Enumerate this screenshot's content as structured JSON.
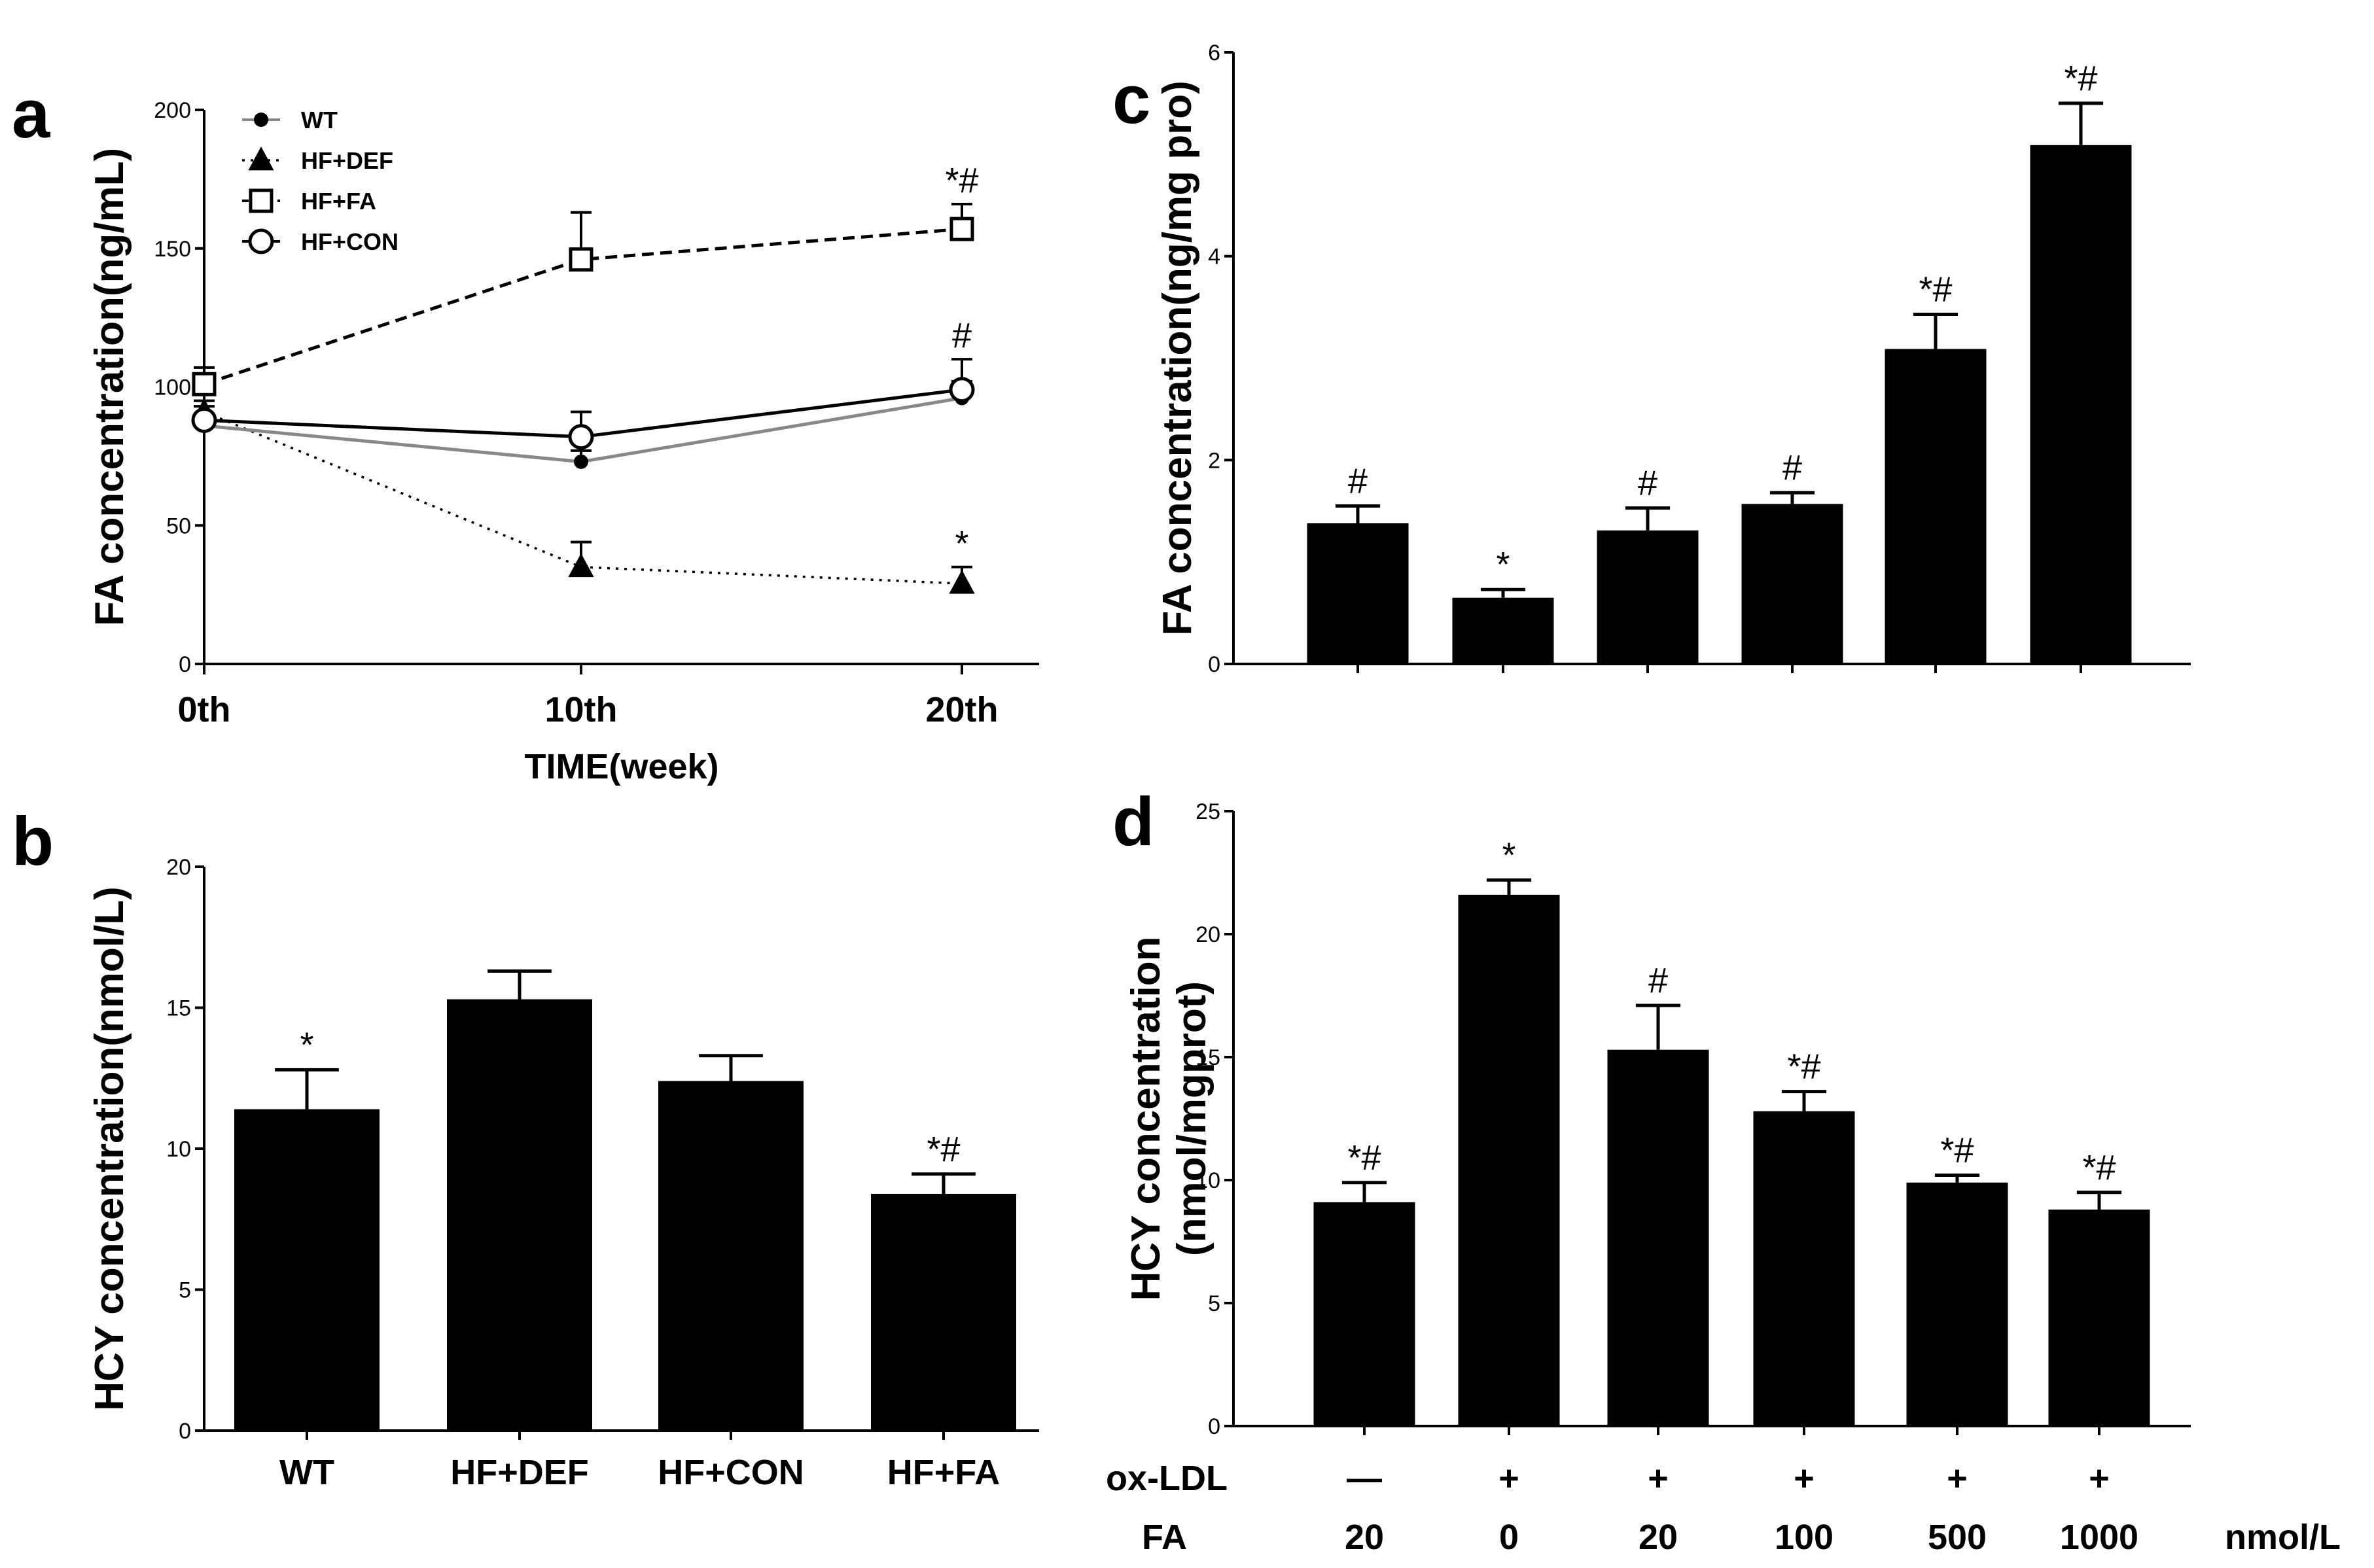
{
  "chart_data": [
    {
      "id": "a",
      "panel_label": "a",
      "type": "line",
      "x": [
        "0th",
        "10th",
        "20th"
      ],
      "xlabel": "TIME(week)",
      "ylabel": "FA concentration(ng/mL)",
      "ylim": [
        0,
        200
      ],
      "yticks": [
        0,
        50,
        100,
        150,
        200
      ],
      "series": [
        {
          "name": "WT",
          "values": [
            86,
            73,
            96
          ],
          "err": [
            4,
            4,
            6
          ],
          "color": "#888888",
          "line": "solid",
          "marker": "filled-circle"
        },
        {
          "name": "HF+DEF",
          "values": [
            91,
            35,
            29
          ],
          "err": [
            4,
            9,
            6
          ],
          "color": "#000000",
          "line": "dotted",
          "marker": "filled-triangle"
        },
        {
          "name": "HF+FA",
          "values": [
            101,
            146,
            157
          ],
          "err": [
            6,
            17,
            9
          ],
          "color": "#000000",
          "line": "dashed",
          "marker": "open-square"
        },
        {
          "name": "HF+CON",
          "values": [
            88,
            82,
            99
          ],
          "err": [
            5,
            9,
            11
          ],
          "color": "#000000",
          "line": "solid",
          "marker": "open-circle"
        }
      ],
      "annotations": [
        {
          "x": "20th",
          "series": "HF+FA",
          "text": "*#"
        },
        {
          "x": "20th",
          "series": "HF+CON",
          "text": "#"
        },
        {
          "x": "20th",
          "series": "HF+DEF",
          "text": "*"
        }
      ]
    },
    {
      "id": "b",
      "panel_label": "b",
      "type": "bar",
      "categories": [
        "WT",
        "HF+DEF",
        "HF+CON",
        "HF+FA"
      ],
      "values": [
        11.4,
        15.3,
        12.4,
        8.4
      ],
      "err": [
        1.4,
        1.0,
        0.9,
        0.7
      ],
      "sig": [
        "*",
        "",
        "",
        "*#"
      ],
      "ylabel": "HCY concentration(nmol/L)",
      "ylim": [
        0,
        20
      ],
      "yticks": [
        0,
        5,
        10,
        15,
        20
      ]
    },
    {
      "id": "c",
      "panel_label": "c",
      "type": "bar",
      "categories": [
        "",
        "",
        "",
        "",
        "",
        ""
      ],
      "values": [
        1.38,
        0.65,
        1.31,
        1.57,
        3.09,
        5.09
      ],
      "err": [
        0.17,
        0.08,
        0.22,
        0.11,
        0.34,
        0.41
      ],
      "sig": [
        "#",
        "*",
        "#",
        "#",
        "*#",
        "*#"
      ],
      "ylabel": "FA concentration(ng/mg pro)",
      "ylim": [
        0,
        6
      ],
      "yticks": [
        0,
        2,
        4,
        6
      ]
    },
    {
      "id": "d",
      "panel_label": "d",
      "type": "bar",
      "categories": [
        "",
        "",
        "",
        "",
        "",
        ""
      ],
      "values": [
        9.1,
        21.6,
        15.3,
        12.8,
        9.9,
        8.8
      ],
      "err": [
        0.8,
        0.6,
        1.8,
        0.8,
        0.3,
        0.7
      ],
      "sig": [
        "*#",
        "*",
        "#",
        "*#",
        "*#",
        "*#"
      ],
      "ylabel_lines": [
        "HCY concentration",
        "(nmol/mgprot)"
      ],
      "ylim": [
        0,
        25
      ],
      "yticks": [
        0,
        5,
        10,
        15,
        20,
        25
      ],
      "conditions": [
        {
          "label": "ox-LDL",
          "values": [
            "—",
            "+",
            "+",
            "+",
            "+",
            "+"
          ]
        },
        {
          "label": "FA",
          "values": [
            "20",
            "0",
            "20",
            "100",
            "500",
            "1000"
          ],
          "unit": "nmol/L"
        }
      ]
    }
  ]
}
